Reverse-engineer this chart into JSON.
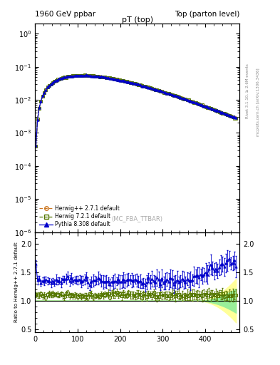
{
  "title_left": "1960 GeV ppbar",
  "title_right": "Top (parton level)",
  "plot_title": "pT (top)",
  "ylabel_ratio": "Ratio to Herwig++ 2.7.1 default",
  "right_label_top": "Rivet 3.1.10, ≥ 2.6M events",
  "right_label_bottom": "mcplots.cern.ch [arXiv:1306.3436]",
  "annotation": "(MC_FBA_TTBAR)",
  "legend_entries": [
    "Herwig++ 2.7.1 default",
    "Herwig 7.2.1 default",
    "Pythia 8.308 default"
  ],
  "herwig1_color": "#cc7722",
  "herwig2_color": "#557700",
  "pythia_color": "#0000cc",
  "band_outer_color": "#ffff99",
  "band_inner_color": "#99ee99",
  "xlim": [
    0,
    480
  ],
  "ylim_main": [
    1e-06,
    2.0
  ],
  "ylim_ratio": [
    0.45,
    2.2
  ],
  "ratio_yticks": [
    0.5,
    1.0,
    1.5,
    2.0
  ],
  "figsize": [
    3.93,
    5.12
  ],
  "dpi": 100
}
